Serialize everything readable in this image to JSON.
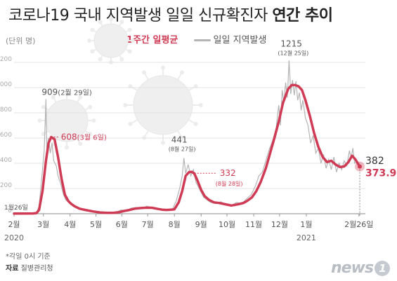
{
  "title_main": "코로나19 국내 지역발생 일일 신규확진자 ",
  "title_bold": "연간 추이",
  "unit": "(단위 명)",
  "legend": {
    "avg": "1주간 일평균",
    "daily": "일일 지역발생"
  },
  "note": "*각일 0시 기준",
  "source_label": "자료",
  "source": "질병관리청",
  "logo": "news",
  "logo_badge": "1",
  "colors": {
    "avg": "#cf3b55",
    "daily": "#b4b4b4",
    "grid": "#e3e3e3",
    "label": "#555555"
  },
  "chart_data": {
    "type": "line",
    "ylim": [
      0,
      1250
    ],
    "yticks": [
      0,
      200,
      400,
      600,
      800,
      1000,
      1200
    ],
    "month_labels": [
      "2월",
      "3월",
      "4월",
      "5월",
      "6월",
      "7월",
      "8월",
      "9월",
      "10월",
      "11월",
      "12월",
      "1월",
      "2월26일"
    ],
    "year_labels": [
      {
        "label": "2020",
        "x_index": 0
      },
      {
        "label": "2021",
        "x_index": 11
      }
    ],
    "series": [
      {
        "name": "1주간 일평균",
        "points": [
          [
            0,
            1
          ],
          [
            22,
            2
          ],
          [
            26,
            5
          ],
          [
            29,
            30
          ],
          [
            33,
            180
          ],
          [
            37,
            420
          ],
          [
            40,
            560
          ],
          [
            43,
            608
          ],
          [
            47,
            590
          ],
          [
            51,
            450
          ],
          [
            55,
            280
          ],
          [
            59,
            150
          ],
          [
            63,
            100
          ],
          [
            66,
            80
          ],
          [
            70,
            60
          ],
          [
            76,
            40
          ],
          [
            84,
            28
          ],
          [
            92,
            18
          ],
          [
            100,
            10
          ],
          [
            108,
            7
          ],
          [
            116,
            8
          ],
          [
            122,
            12
          ],
          [
            128,
            22
          ],
          [
            134,
            30
          ],
          [
            140,
            40
          ],
          [
            147,
            45
          ],
          [
            154,
            48
          ],
          [
            160,
            47
          ],
          [
            167,
            38
          ],
          [
            172,
            32
          ],
          [
            177,
            30
          ],
          [
            182,
            32
          ],
          [
            186,
            35
          ],
          [
            191,
            90
          ],
          [
            195,
            180
          ],
          [
            199,
            300
          ],
          [
            203,
            330
          ],
          [
            206,
            332
          ],
          [
            209,
            320
          ],
          [
            213,
            260
          ],
          [
            217,
            190
          ],
          [
            221,
            140
          ],
          [
            226,
            110
          ],
          [
            232,
            90
          ],
          [
            238,
            85
          ],
          [
            245,
            75
          ],
          [
            252,
            65
          ],
          [
            260,
            75
          ],
          [
            266,
            85
          ],
          [
            270,
            100
          ],
          [
            276,
            130
          ],
          [
            281,
            180
          ],
          [
            286,
            250
          ],
          [
            292,
            360
          ],
          [
            297,
            480
          ],
          [
            302,
            600
          ],
          [
            307,
            730
          ],
          [
            312,
            880
          ],
          [
            318,
            990
          ],
          [
            322,
            1020
          ],
          [
            326,
            1020
          ],
          [
            330,
            1010
          ],
          [
            334,
            980
          ],
          [
            338,
            900
          ],
          [
            343,
            780
          ],
          [
            348,
            640
          ],
          [
            353,
            530
          ],
          [
            358,
            450
          ],
          [
            363,
            410
          ],
          [
            368,
            420
          ],
          [
            373,
            390
          ],
          [
            378,
            370
          ],
          [
            383,
            375
          ],
          [
            388,
            410
          ],
          [
            392,
            460
          ],
          [
            396,
            430
          ],
          [
            401,
            374
          ]
        ]
      },
      {
        "name": "일일 지역발생",
        "points": [
          [
            0,
            1
          ],
          [
            10,
            1
          ],
          [
            20,
            2
          ],
          [
            26,
            5
          ],
          [
            29,
            60
          ],
          [
            31,
            200
          ],
          [
            33,
            350
          ],
          [
            35,
            500
          ],
          [
            37,
            909
          ],
          [
            38,
            520
          ],
          [
            40,
            600
          ],
          [
            42,
            480
          ],
          [
            44,
            560
          ],
          [
            46,
            420
          ],
          [
            49,
            380
          ],
          [
            51,
            300
          ],
          [
            54,
            240
          ],
          [
            57,
            160
          ],
          [
            60,
            110
          ],
          [
            64,
            90
          ],
          [
            68,
            70
          ],
          [
            72,
            55
          ],
          [
            78,
            40
          ],
          [
            86,
            25
          ],
          [
            94,
            12
          ],
          [
            102,
            8
          ],
          [
            110,
            5
          ],
          [
            118,
            10
          ],
          [
            124,
            30
          ],
          [
            130,
            25
          ],
          [
            136,
            45
          ],
          [
            142,
            50
          ],
          [
            148,
            40
          ],
          [
            154,
            60
          ],
          [
            160,
            50
          ],
          [
            166,
            35
          ],
          [
            172,
            25
          ],
          [
            178,
            35
          ],
          [
            184,
            40
          ],
          [
            188,
            100
          ],
          [
            192,
            200
          ],
          [
            195,
            300
          ],
          [
            197,
            441
          ],
          [
            199,
            320
          ],
          [
            202,
            390
          ],
          [
            205,
            300
          ],
          [
            208,
            350
          ],
          [
            211,
            250
          ],
          [
            214,
            210
          ],
          [
            217,
            170
          ],
          [
            220,
            130
          ],
          [
            224,
            110
          ],
          [
            228,
            90
          ],
          [
            234,
            80
          ],
          [
            240,
            95
          ],
          [
            246,
            70
          ],
          [
            252,
            60
          ],
          [
            258,
            90
          ],
          [
            264,
            80
          ],
          [
            270,
            120
          ],
          [
            275,
            150
          ],
          [
            280,
            220
          ],
          [
            284,
            300
          ],
          [
            288,
            330
          ],
          [
            292,
            420
          ],
          [
            296,
            510
          ],
          [
            300,
            580
          ],
          [
            304,
            680
          ],
          [
            307,
            860
          ],
          [
            309,
            700
          ],
          [
            311,
            980
          ],
          [
            313,
            880
          ],
          [
            315,
            1040
          ],
          [
            317,
            920
          ],
          [
            319,
            1215
          ],
          [
            321,
            950
          ],
          [
            323,
            1060
          ],
          [
            325,
            940
          ],
          [
            327,
            1050
          ],
          [
            329,
            900
          ],
          [
            331,
            960
          ],
          [
            333,
            820
          ],
          [
            335,
            900
          ],
          [
            338,
            760
          ],
          [
            341,
            700
          ],
          [
            344,
            560
          ],
          [
            347,
            620
          ],
          [
            350,
            480
          ],
          [
            353,
            520
          ],
          [
            356,
            400
          ],
          [
            359,
            470
          ],
          [
            362,
            360
          ],
          [
            365,
            430
          ],
          [
            368,
            350
          ],
          [
            371,
            450
          ],
          [
            374,
            330
          ],
          [
            377,
            400
          ],
          [
            380,
            350
          ],
          [
            383,
            420
          ],
          [
            386,
            380
          ],
          [
            389,
            500
          ],
          [
            391,
            440
          ],
          [
            393,
            520
          ],
          [
            395,
            400
          ],
          [
            398,
            420
          ],
          [
            401,
            382
          ]
        ]
      }
    ],
    "annotations": [
      {
        "label": "909",
        "sub": "(2월 29일)",
        "x": 37,
        "y": 909
      },
      {
        "label": "608",
        "sub": "(3월 6일)",
        "x": 43,
        "y": 608
      },
      {
        "label": "441",
        "sub": "(8월 27일)",
        "x": 197,
        "y": 441
      },
      {
        "label": "332",
        "sub": "(8월 28일)",
        "x": 206,
        "y": 332
      },
      {
        "label": "1215",
        "sub": "(12월 25일)",
        "x": 319,
        "y": 1215
      },
      {
        "label": "382",
        "sub": "",
        "x": 401,
        "y": 382
      },
      {
        "label": "373.9",
        "sub": "",
        "x": 401,
        "y": 374
      },
      {
        "label": "1월26일",
        "sub": "",
        "x": 0,
        "y": 1
      }
    ]
  }
}
